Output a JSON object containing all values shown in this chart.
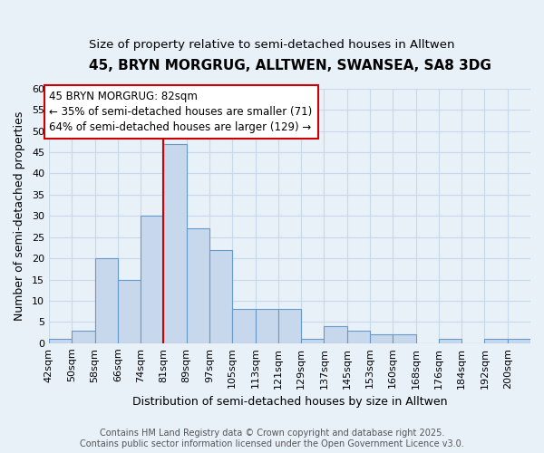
{
  "title": "45, BRYN MORGRUG, ALLTWEN, SWANSEA, SA8 3DG",
  "subtitle": "Size of property relative to semi-detached houses in Alltwen",
  "xlabel": "Distribution of semi-detached houses by size in Alltwen",
  "ylabel": "Number of semi-detached properties",
  "bar_labels": [
    "42sqm",
    "50sqm",
    "58sqm",
    "66sqm",
    "74sqm",
    "81sqm",
    "89sqm",
    "97sqm",
    "105sqm",
    "113sqm",
    "121sqm",
    "129sqm",
    "137sqm",
    "145sqm",
    "153sqm",
    "160sqm",
    "168sqm",
    "176sqm",
    "184sqm",
    "192sqm",
    "200sqm"
  ],
  "bar_values": [
    1,
    3,
    20,
    15,
    30,
    47,
    27,
    22,
    8,
    8,
    8,
    1,
    4,
    3,
    2,
    2,
    0,
    1,
    0,
    1,
    1
  ],
  "bar_color": "#c8d8ec",
  "bar_edge_color": "#6699cc",
  "vline_bar_index": 5,
  "vline_color": "#cc0000",
  "annotation_text": "45 BRYN MORGRUG: 82sqm\n← 35% of semi-detached houses are smaller (71)\n64% of semi-detached houses are larger (129) →",
  "annotation_box_color": "#ffffff",
  "annotation_box_edge_color": "#cc0000",
  "ylim": [
    0,
    60
  ],
  "yticks": [
    0,
    5,
    10,
    15,
    20,
    25,
    30,
    35,
    40,
    45,
    50,
    55,
    60
  ],
  "footer_text": "Contains HM Land Registry data © Crown copyright and database right 2025.\nContains public sector information licensed under the Open Government Licence v3.0.",
  "background_color": "#e8f0f8",
  "plot_background_color": "#e8f0f8",
  "grid_color": "#c8d8e8",
  "title_fontsize": 11,
  "subtitle_fontsize": 9.5,
  "axis_label_fontsize": 9,
  "tick_fontsize": 8,
  "annotation_fontsize": 8.5,
  "footer_fontsize": 7
}
